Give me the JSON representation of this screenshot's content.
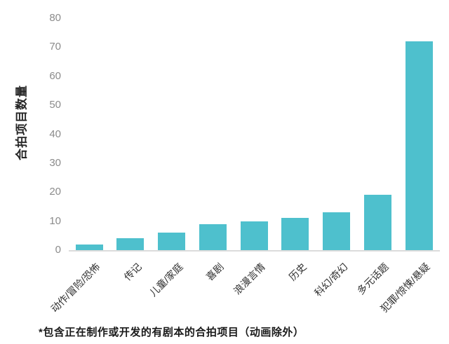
{
  "chart_data": {
    "type": "bar",
    "categories": [
      "动作/冒险/恐怖",
      "传记",
      "儿童/家庭",
      "喜剧",
      "浪漫言情",
      "历史",
      "科幻/奇幻",
      "多元话题",
      "犯罪/惊悚/悬疑"
    ],
    "values": [
      2,
      4,
      6,
      9,
      10,
      11,
      13,
      19,
      72
    ],
    "title": "",
    "xlabel": "",
    "ylabel": "合拍项目数量",
    "ylim": [
      0,
      80
    ],
    "ytick_step": 10,
    "ytick_labels": [
      "0",
      "10",
      "20",
      "30",
      "40",
      "50",
      "60",
      "70",
      "80"
    ],
    "grid": false,
    "legend_position": "none"
  },
  "footnote": "*包含正在制作或开发的有剧本的合拍项目（动画除外）",
  "colors": {
    "background": "#FFFFFF",
    "bar": "#4EC0CD",
    "tick_label": "#8B8B8B",
    "axis_line": "#DBDBDB",
    "category_label": "#2F2F2F",
    "axis_title": "#262626",
    "footnote": "#1A1A1A"
  }
}
